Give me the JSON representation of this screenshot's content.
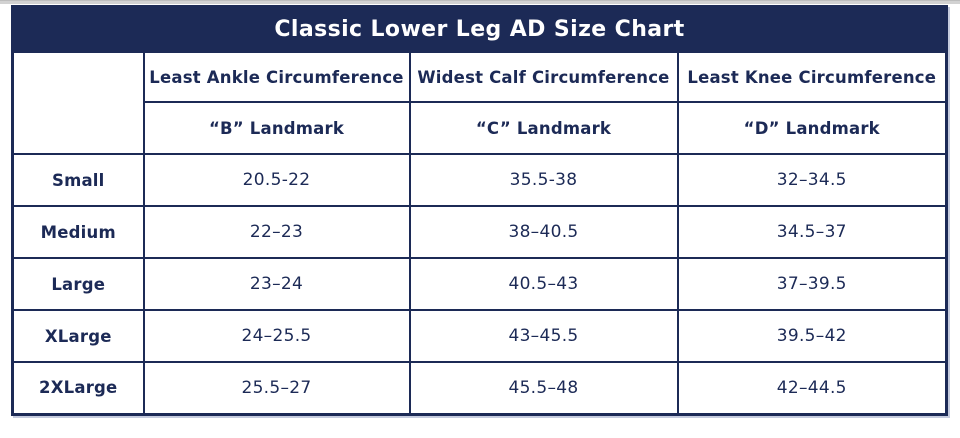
{
  "colors": {
    "navy": "#1c2a56",
    "title_text": "#ffffff",
    "background": "#ffffff",
    "top_strip": "#d2d2d2",
    "table_shadow": "#c5cbde"
  },
  "chart_data": {
    "type": "table",
    "title": "Classic Lower Leg AD Size Chart",
    "column_headers": [
      "",
      "Least Ankle Circumference",
      "Widest Calf Circumference",
      "Least Knee Circumference"
    ],
    "landmark_row": [
      "",
      "“B” Landmark",
      "“C” Landmark",
      "“D” Landmark"
    ],
    "row_labels": [
      "Small",
      "Medium",
      "Large",
      "XLarge",
      "2XLarge"
    ],
    "rows": [
      [
        "Small",
        "20.5-22",
        "35.5-38",
        "32–34.5"
      ],
      [
        "Medium",
        "22–23",
        "38–40.5",
        "34.5–37"
      ],
      [
        "Large",
        "23–24",
        "40.5–43",
        "37–39.5"
      ],
      [
        "XLarge",
        "24–25.5",
        "43–45.5",
        "39.5–42"
      ],
      [
        "2XLarge",
        "25.5–27",
        "45.5–48",
        "42–44.5"
      ]
    ]
  }
}
